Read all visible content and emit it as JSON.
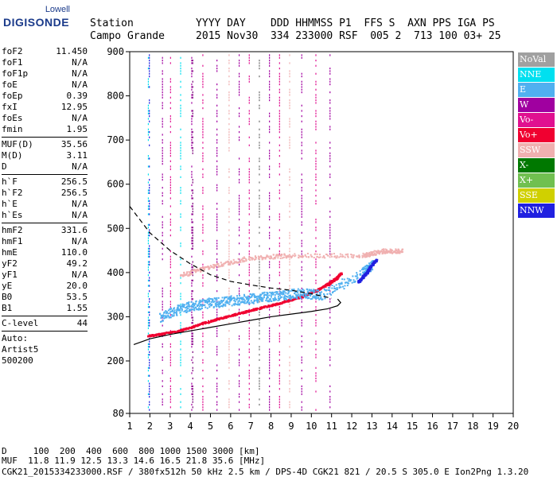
{
  "logo": {
    "line1": "Lowell",
    "line2": "DIGISONDE"
  },
  "header": {
    "labels_line": "Station          YYYY DAY    DDD HHMMSS P1  FFS S  AXN PPS IGA PS",
    "values_line": "Campo Grande     2015 Nov30  334 233000 RSF  005 2  713 100 03+ 25"
  },
  "params_group1": [
    {
      "k": "foF2",
      "v": "11.450"
    },
    {
      "k": "foF1",
      "v": "N/A"
    },
    {
      "k": "foF1p",
      "v": "N/A"
    },
    {
      "k": "foE",
      "v": "N/A"
    },
    {
      "k": "foEp",
      "v": "0.39"
    },
    {
      "k": "fxI",
      "v": "12.95"
    },
    {
      "k": "foEs",
      "v": "N/A"
    },
    {
      "k": "fmin",
      "v": "1.95"
    }
  ],
  "params_group2": [
    {
      "k": "MUF(D)",
      "v": "35.56"
    },
    {
      "k": "M(D)",
      "v": "3.11"
    },
    {
      "k": "D",
      "v": "N/A"
    }
  ],
  "params_group3": [
    {
      "k": "h`F",
      "v": "256.5"
    },
    {
      "k": "h`F2",
      "v": "256.5"
    },
    {
      "k": "h`E",
      "v": "N/A"
    },
    {
      "k": "h`Es",
      "v": "N/A"
    }
  ],
  "params_group4": [
    {
      "k": "hmF2",
      "v": "331.6"
    },
    {
      "k": "hmF1",
      "v": "N/A"
    },
    {
      "k": "hmE",
      "v": "110.0"
    },
    {
      "k": "yF2",
      "v": "49.2"
    },
    {
      "k": "yF1",
      "v": "N/A"
    },
    {
      "k": "yE",
      "v": "20.0"
    },
    {
      "k": "B0",
      "v": "53.5"
    },
    {
      "k": "B1",
      "v": "1.55"
    }
  ],
  "clevel": {
    "k": "C-level",
    "v": "44"
  },
  "auto": {
    "line1": "Auto:",
    "line2": "Artist5",
    "line3": "500200"
  },
  "legend": [
    {
      "label": "NoVal",
      "color": "#a0a0a0"
    },
    {
      "label": "NNE",
      "color": "#00e0f0"
    },
    {
      "label": "E",
      "color": "#50b0f0"
    },
    {
      "label": "W",
      "color": "#a000a0"
    },
    {
      "label": "Vo-",
      "color": "#e01090"
    },
    {
      "label": "Vo+",
      "color": "#f00030"
    },
    {
      "label": "SSW",
      "color": "#f0b0b0"
    },
    {
      "label": "X-",
      "color": "#007800"
    },
    {
      "label": "X+",
      "color": "#70c050"
    },
    {
      "label": "SSE",
      "color": "#d0d000"
    },
    {
      "label": "NNW",
      "color": "#2020e0"
    }
  ],
  "bottom": {
    "line1": "D     100  200  400  600  800 1000 1500 3000 [km]",
    "line2": "MUF  11.8 11.9 12.5 13.3 14.6 16.5 21.8 35.6 [MHz]",
    "line3": "CGK21_2015334233000.RSF / 380fx512h 50 kHz 2.5 km / DPS-4D CGK21 821 / 20.5 S 305.0 E Ion2Png 1.3.20"
  },
  "chart_data": {
    "type": "scatter",
    "title": "",
    "xlabel": "",
    "ylabel": "",
    "xlim": [
      1,
      20
    ],
    "ylim": [
      80,
      900
    ],
    "xticks": [
      1,
      2,
      3,
      4,
      5,
      6,
      7,
      8,
      9,
      10,
      11,
      12,
      13,
      14,
      15,
      16,
      17,
      18,
      19,
      20
    ],
    "yticks": [
      80,
      200,
      300,
      400,
      500,
      600,
      700,
      800,
      900
    ],
    "series": [
      {
        "name": "Vo+",
        "x": [
          1.9,
          2.5,
          3.5,
          4.5,
          5.5,
          6.5,
          7.5,
          8.5,
          9.5,
          10.2,
          10.8,
          11.2,
          11.45
        ],
        "y": [
          258,
          262,
          270,
          285,
          298,
          310,
          322,
          333,
          347,
          360,
          375,
          388,
          400
        ]
      },
      {
        "name": "E",
        "x": [
          2.5,
          3.5,
          4.5,
          5.5,
          6.5,
          7.5,
          8.5,
          9.5,
          10.5,
          12.5,
          13.0
        ],
        "y": [
          300,
          320,
          330,
          335,
          340,
          345,
          350,
          355,
          350,
          400,
          420
        ]
      },
      {
        "name": "NNW",
        "x": [
          12.3,
          12.7,
          13.0,
          13.2
        ],
        "y": [
          380,
          400,
          420,
          430
        ]
      },
      {
        "name": "SSW",
        "x": [
          3.5,
          5.0,
          7.0,
          9.0,
          12.5,
          13.5,
          14.5
        ],
        "y": [
          395,
          415,
          435,
          440,
          440,
          450,
          450
        ]
      }
    ],
    "profile_solid": {
      "x": [
        1.2,
        2,
        3,
        4,
        5,
        6,
        7,
        8,
        9,
        10,
        10.8,
        11.3,
        11.45,
        11.3
      ],
      "y": [
        237,
        250,
        260,
        268,
        276,
        284,
        292,
        300,
        306,
        312,
        318,
        325,
        332,
        340
      ]
    },
    "profile_dashed": {
      "x": [
        1.0,
        2,
        3,
        4,
        5,
        6,
        7,
        8,
        9,
        10,
        11
      ],
      "y": [
        550,
        490,
        450,
        420,
        395,
        380,
        372,
        365,
        360,
        352,
        342
      ]
    }
  }
}
